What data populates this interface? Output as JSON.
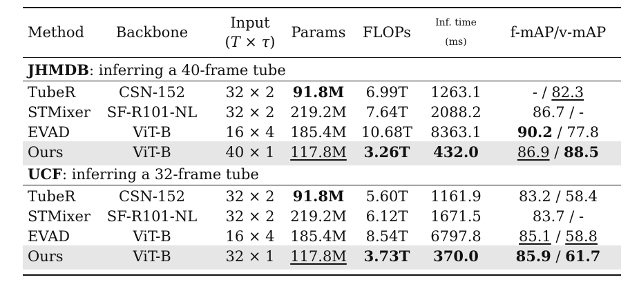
{
  "header": {
    "method": "Method",
    "backbone": "Backbone",
    "input_top": "Input",
    "input_bottom_prefix": "(",
    "input_T": "T",
    "input_times": " × ",
    "input_tau": "τ",
    "input_bottom_suffix": ")",
    "params": "Params",
    "flops": "FLOPs",
    "inf_top": "Inf. time",
    "inf_bottom": "(ms)",
    "map": "f-mAP/v-mAP"
  },
  "sections": [
    {
      "name": "JHMDB",
      "rest": ": inferring a 40-frame tube",
      "rows": [
        {
          "method": "TubeR",
          "backbone": "CSN-152",
          "input": "32 × 2",
          "params": "91.8M",
          "flops": "6.99T",
          "inf": "1263.1",
          "fmap": "-",
          "vmap": "82.3",
          "highlight": false
        },
        {
          "method": "STMixer",
          "backbone": "SF-R101-NL",
          "input": "32 × 2",
          "params": "219.2M",
          "flops": "7.64T",
          "inf": "2088.2",
          "fmap": "86.7",
          "vmap": "-",
          "highlight": false
        },
        {
          "method": "EVAD",
          "backbone": "ViT-B",
          "input": "16 × 4",
          "params": "185.4M",
          "flops": "10.68T",
          "inf": "8363.1",
          "fmap": "90.2",
          "vmap": "77.8",
          "highlight": false
        },
        {
          "method": "Ours",
          "backbone": "ViT-B",
          "input": "40 × 1",
          "params": "117.8M",
          "flops": "3.26T",
          "inf": "432.0",
          "fmap": "86.9",
          "vmap": "88.5",
          "highlight": true
        }
      ]
    },
    {
      "name": "UCF",
      "rest": ": inferring a 32-frame tube",
      "rows": [
        {
          "method": "TubeR",
          "backbone": "CSN-152",
          "input": "32 × 2",
          "params": "91.8M",
          "flops": "5.60T",
          "inf": "1161.9",
          "fmap": "83.2",
          "vmap": "58.4",
          "highlight": false
        },
        {
          "method": "STMixer",
          "backbone": "SF-R101-NL",
          "input": "32 × 2",
          "params": "219.2M",
          "flops": "6.12T",
          "inf": "1671.5",
          "fmap": "83.7",
          "vmap": "-",
          "highlight": false
        },
        {
          "method": "EVAD",
          "backbone": "ViT-B",
          "input": "16 × 4",
          "params": "185.4M",
          "flops": "8.54T",
          "inf": "6797.8",
          "fmap": "85.1",
          "vmap": "58.8",
          "highlight": false
        },
        {
          "method": "Ours",
          "backbone": "ViT-B",
          "input": "32 × 1",
          "params": "117.8M",
          "flops": "3.73T",
          "inf": "370.0",
          "fmap": "85.9",
          "vmap": "61.7",
          "highlight": true
        }
      ]
    }
  ],
  "separator": " / "
}
